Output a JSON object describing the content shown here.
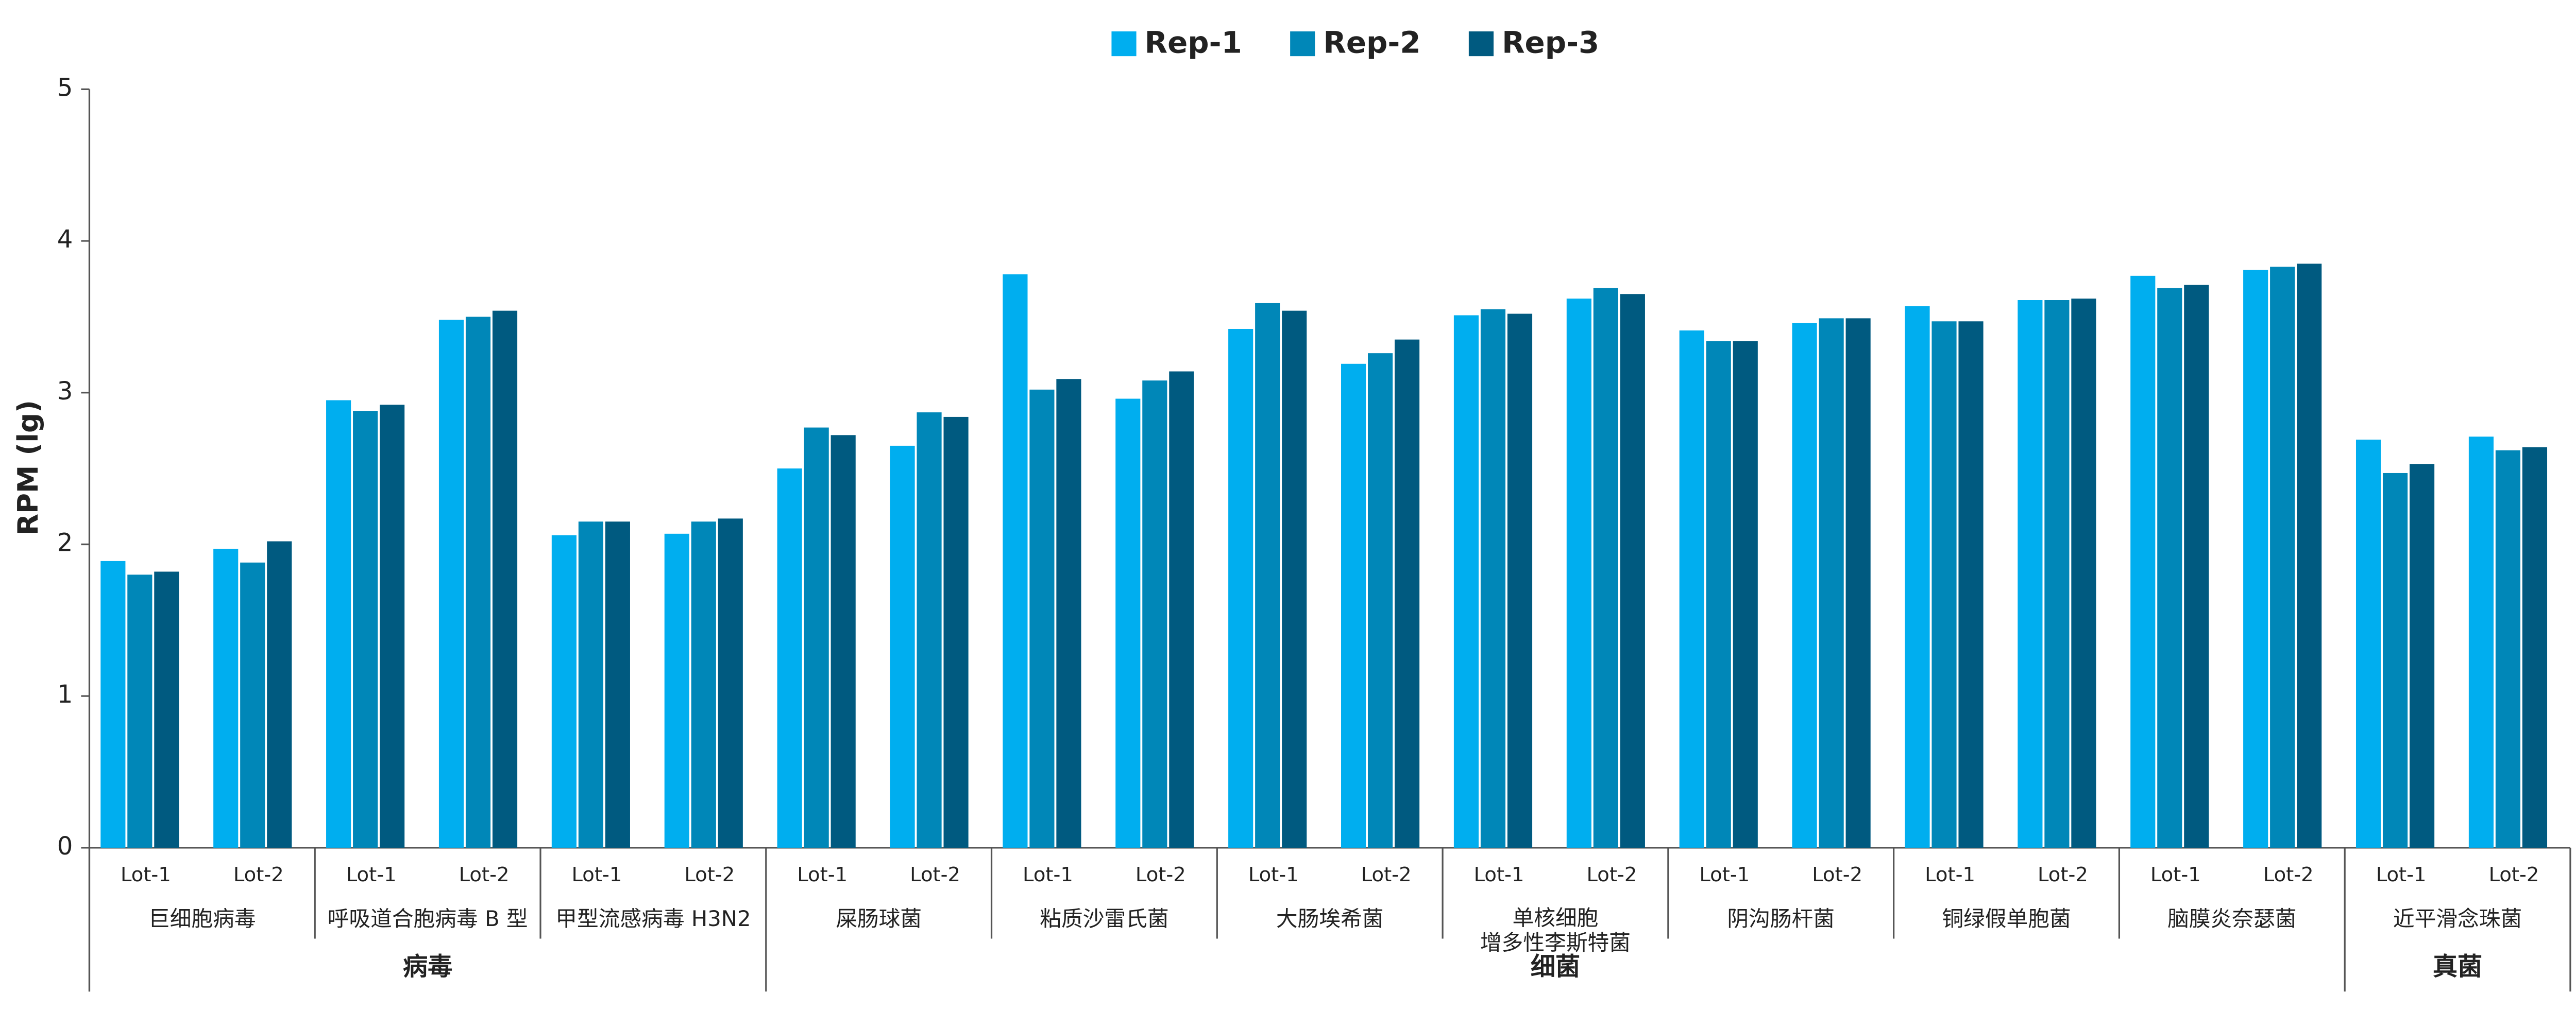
{
  "chart_data": {
    "type": "bar",
    "ylabel": "RPM (lg)",
    "ylim": [
      0,
      5
    ],
    "yticks": [
      0,
      1,
      2,
      3,
      4,
      5
    ],
    "legend": "top",
    "groups": [
      {
        "label": "病毒",
        "groups": [
          {
            "label": [
              "巨细胞病毒"
            ],
            "categories": [
              "Lot-1",
              "Lot-2"
            ]
          },
          {
            "label": [
              "呼吸道合胞病毒 B 型"
            ],
            "categories": [
              "Lot-1",
              "Lot-2"
            ]
          },
          {
            "label": [
              "甲型流感病毒 H3N2"
            ],
            "categories": [
              "Lot-1",
              "Lot-2"
            ]
          }
        ]
      },
      {
        "label": "细菌",
        "groups": [
          {
            "label": [
              "屎肠球菌"
            ],
            "categories": [
              "Lot-1",
              "Lot-2"
            ]
          },
          {
            "label": [
              "粘质沙雷氏菌"
            ],
            "categories": [
              "Lot-1",
              "Lot-2"
            ]
          },
          {
            "label": [
              "大肠埃希菌"
            ],
            "categories": [
              "Lot-1",
              "Lot-2"
            ]
          },
          {
            "label": [
              "单核细胞",
              "增多性李斯特菌"
            ],
            "categories": [
              "Lot-1",
              "Lot-2"
            ]
          },
          {
            "label": [
              "阴沟肠杆菌"
            ],
            "categories": [
              "Lot-1",
              "Lot-2"
            ]
          },
          {
            "label": [
              "铜绿假单胞菌"
            ],
            "categories": [
              "Lot-1",
              "Lot-2"
            ]
          },
          {
            "label": [
              "脑膜炎奈瑟菌"
            ],
            "categories": [
              "Lot-1",
              "Lot-2"
            ]
          }
        ]
      },
      {
        "label": "真菌",
        "groups": [
          {
            "label": [
              "近平滑念珠菌"
            ],
            "categories": [
              "Lot-1",
              "Lot-2"
            ]
          }
        ]
      }
    ],
    "series": [
      {
        "name": "Rep-1",
        "color": "#00aeef",
        "values": [
          1.89,
          1.97,
          2.95,
          3.48,
          2.06,
          2.07,
          2.5,
          2.65,
          3.78,
          2.96,
          3.42,
          3.19,
          3.51,
          3.62,
          3.41,
          3.46,
          3.57,
          3.61,
          3.77,
          3.81,
          2.69,
          2.71
        ]
      },
      {
        "name": "Rep-2",
        "color": "#0087b8",
        "values": [
          1.8,
          1.88,
          2.88,
          3.5,
          2.15,
          2.15,
          2.77,
          2.87,
          3.02,
          3.08,
          3.59,
          3.26,
          3.55,
          3.69,
          3.34,
          3.49,
          3.47,
          3.61,
          3.69,
          3.83,
          2.47,
          2.62
        ]
      },
      {
        "name": "Rep-3",
        "color": "#005a80",
        "values": [
          1.82,
          2.02,
          2.92,
          3.54,
          2.15,
          2.17,
          2.72,
          2.84,
          3.09,
          3.14,
          3.54,
          3.35,
          3.52,
          3.65,
          3.34,
          3.49,
          3.47,
          3.62,
          3.71,
          3.85,
          2.53,
          2.64
        ]
      }
    ]
  }
}
